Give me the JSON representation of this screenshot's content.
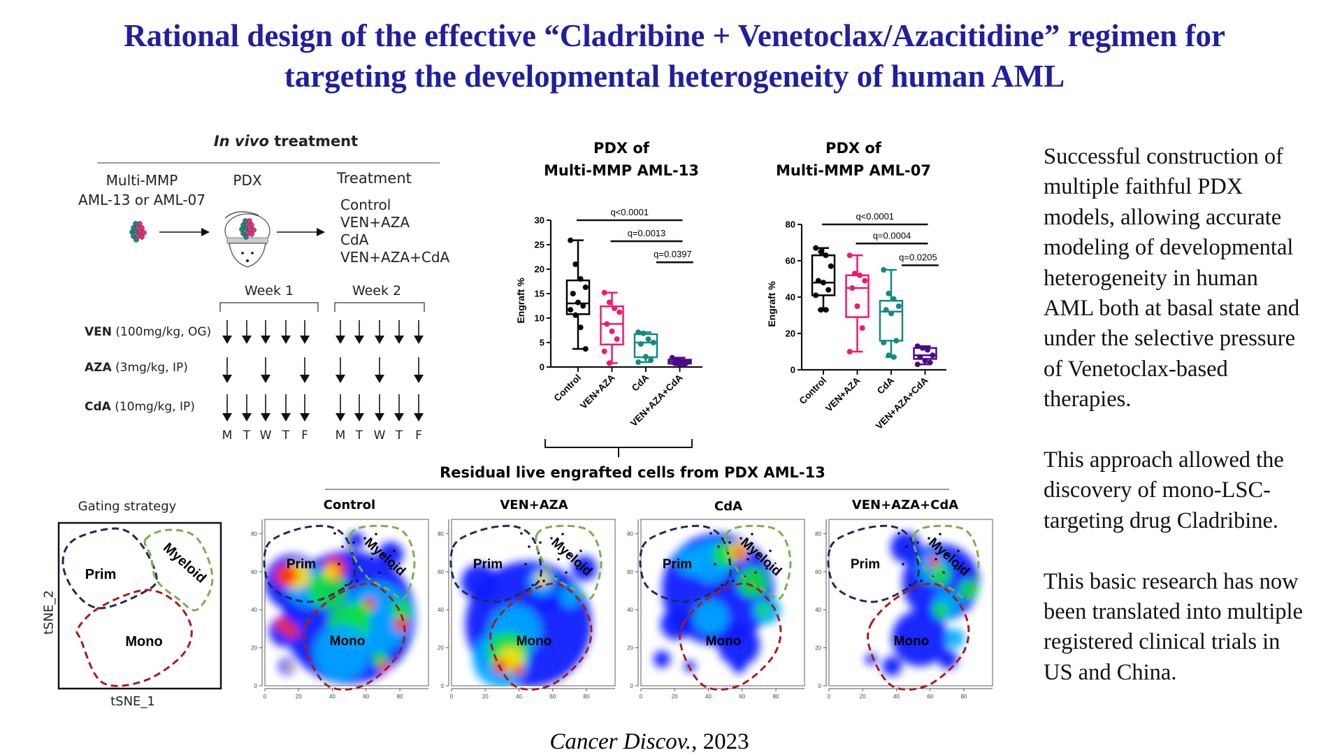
{
  "title": {
    "line1": "Rational design of the effective “Cladribine + Venetoclax/Azacitidine” regimen for",
    "line2": "targeting the developmental heterogeneity of human AML"
  },
  "treatment": {
    "heading_italic": "In vivo",
    "heading_rest": " treatment",
    "source_line1": "Multi-MMP",
    "source_line2": "AML-13 or AML-07",
    "pdx_label": "PDX",
    "treatment_label": "Treatment",
    "arms": [
      "Control",
      "VEN+AZA",
      "CdA",
      "VEN+AZA+CdA"
    ],
    "weeks": [
      "Week 1",
      "Week 2"
    ],
    "drugs": [
      {
        "name": "VEN",
        "dose": " (100mg/kg, OG)",
        "days": [
          1,
          1,
          1,
          1,
          1
        ]
      },
      {
        "name": "AZA",
        "dose": " (3mg/kg, IP)",
        "days": [
          1,
          0,
          1,
          0,
          1
        ]
      },
      {
        "name": "CdA",
        "dose": " (10mg/kg, IP)",
        "days": [
          1,
          1,
          1,
          1,
          1
        ]
      }
    ],
    "day_letters": [
      "M",
      "T",
      "W",
      "T",
      "F"
    ]
  },
  "chart_data": [
    {
      "type": "box",
      "title": [
        "PDX of",
        "Multi-MMP AML-13"
      ],
      "xlabel": "",
      "ylabel": "Engraft %",
      "ylim": [
        0,
        30
      ],
      "yticks": [
        0,
        5,
        10,
        15,
        20,
        25,
        30
      ],
      "categories": [
        "Control",
        "VEN+AZA",
        "CdA",
        "VEN+AZA+CdA"
      ],
      "series": [
        {
          "name": "Control",
          "color": "#000000",
          "min": 3.7,
          "q1": 10.8,
          "median": 13.0,
          "q3": 17.7,
          "max": 25.9,
          "points": [
            25.9,
            21.0,
            18.0,
            16.3,
            15.0,
            13.2,
            12.5,
            11.7,
            10.6,
            8.1,
            3.7
          ]
        },
        {
          "name": "VEN+AZA",
          "color": "#f0196e",
          "min": 0.8,
          "q1": 4.6,
          "median": 8.8,
          "q3": 12.4,
          "max": 15.2,
          "points": [
            15.2,
            13.2,
            12.0,
            11.2,
            8.8,
            7.3,
            5.7,
            3.2,
            0.8
          ]
        },
        {
          "name": "CdA",
          "color": "#138a80",
          "min": 1.0,
          "q1": 2.0,
          "median": 5.0,
          "q3": 6.7,
          "max": 7.1,
          "points": [
            7.1,
            6.9,
            5.7,
            5.0,
            4.7,
            2.1,
            1.4,
            1.0
          ]
        },
        {
          "name": "VEN+AZA+CdA",
          "color": "#4b0a8c",
          "min": 0.4,
          "q1": 0.7,
          "median": 1.1,
          "q3": 1.5,
          "max": 1.9,
          "points": [
            1.9,
            1.5,
            1.2,
            1.0,
            0.8,
            0.6,
            0.5
          ]
        }
      ],
      "comparisons": [
        {
          "label": "q<0.0001",
          "from": 0,
          "to": 3,
          "y": 30
        },
        {
          "label": "q=0.0013",
          "from": 1,
          "to": 3,
          "y": 25.7
        },
        {
          "label": "q=0.0397",
          "from": 2.35,
          "to": 3.4,
          "y": 21.4
        }
      ]
    },
    {
      "type": "box",
      "title": [
        "PDX of",
        "Multi-MMP AML-07"
      ],
      "xlabel": "",
      "ylabel": "Engraft %",
      "ylim": [
        0,
        80
      ],
      "yticks": [
        0,
        20,
        40,
        60,
        80
      ],
      "categories": [
        "Control",
        "VEN+AZA",
        "CdA",
        "VEN+AZA+CdA"
      ],
      "series": [
        {
          "name": "Control",
          "color": "#000000",
          "min": 33,
          "q1": 41,
          "median": 48,
          "q3": 63,
          "max": 67,
          "points": [
            67,
            65,
            63,
            57,
            49,
            48,
            44,
            41,
            33,
            33
          ]
        },
        {
          "name": "VEN+AZA",
          "color": "#f0196e",
          "min": 10,
          "q1": 29,
          "median": 45,
          "q3": 52,
          "max": 63,
          "points": [
            63,
            53,
            52,
            49,
            45,
            35,
            23,
            10
          ]
        },
        {
          "name": "CdA",
          "color": "#138a80",
          "min": 7,
          "q1": 16,
          "median": 32,
          "q3": 38,
          "max": 55,
          "points": [
            55,
            42,
            39,
            35,
            33,
            31,
            16,
            15,
            8,
            7
          ]
        },
        {
          "name": "VEN+AZA+CdA",
          "color": "#4b0a8c",
          "min": 3,
          "q1": 6,
          "median": 8,
          "q3": 12,
          "max": 13,
          "points": [
            13,
            12,
            11,
            8,
            7,
            5,
            4,
            3
          ]
        }
      ],
      "comparisons": [
        {
          "label": "q<0.0001",
          "from": 0,
          "to": 3,
          "y": 80
        },
        {
          "label": "q=0.0004",
          "from": 1,
          "to": 3,
          "y": 69.5
        },
        {
          "label": "q=0.0205",
          "from": 2.35,
          "to": 3.4,
          "y": 57.5
        }
      ]
    }
  ],
  "residual": {
    "title": "Residual live engrafted cells from PDX AML-13",
    "gating_title": "Gating strategy",
    "x_label": "tSNE_1",
    "y_label": "tSNE_2",
    "gates": {
      "prim": "Prim",
      "myeloid": "Myeloid",
      "mono": "Mono"
    },
    "panels": [
      {
        "title": "Control"
      },
      {
        "title": "VEN+AZA"
      },
      {
        "title": "CdA"
      },
      {
        "title": "VEN+AZA+CdA"
      }
    ],
    "ticks": [
      "0",
      "20",
      "40",
      "60",
      "80"
    ]
  },
  "summary": {
    "paragraphs": [
      [
        "Successful construction of",
        "multiple faithful PDX",
        "models, allowing accurate",
        "modeling of developmental",
        "heterogeneity in human",
        "AML both at basal state and",
        "under the selective pressure",
        "of Venetoclax-based",
        "therapies."
      ],
      [
        "This approach allowed the",
        "discovery of mono-LSC-",
        "targeting drug Cladribine."
      ],
      [
        "This basic research has now",
        "been translated into multiple",
        "registered clinical trials in",
        "US and China."
      ]
    ]
  },
  "citation": {
    "journal": "Cancer Discov.",
    "year": ", 2023"
  },
  "colors": {
    "title": "#1f1f9f",
    "prim_gate": "#1b2a5e",
    "myeloid_gate": "#7aaf4a",
    "mono_gate": "#b01818",
    "cell_teal": "#1a8a80",
    "cell_pink": "#e8307a"
  }
}
